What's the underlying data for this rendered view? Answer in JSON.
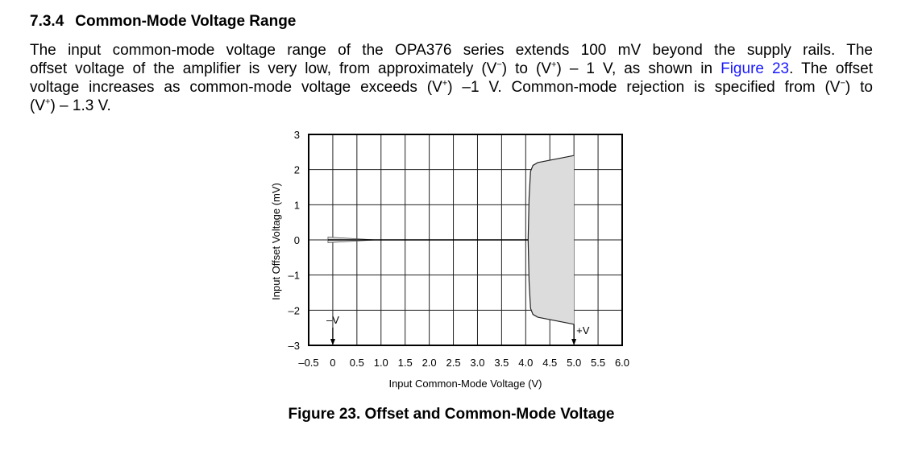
{
  "heading": {
    "number": "7.3.4",
    "title": "Common-Mode Voltage Range"
  },
  "paragraph": {
    "lines": [
      [
        {
          "t": "The input common-mode voltage range of the OPA376 series extends 100 mV beyond the supply rails. The"
        }
      ],
      [
        {
          "t": "offset voltage of the amplifier is very low, from approximately (V"
        },
        {
          "sup": "−"
        },
        {
          "t": ") to (V"
        },
        {
          "sup": "+"
        },
        {
          "t": ") – 1 V, as shown in "
        },
        {
          "link": "Figure 23"
        },
        {
          "t": ". The offset"
        }
      ],
      [
        {
          "t": "voltage increases as common-mode voltage exceeds (V"
        },
        {
          "sup": "+"
        },
        {
          "t": ") –1 V. Common-mode rejection is specified from (V"
        },
        {
          "sup": "−"
        },
        {
          "t": ") to"
        }
      ],
      [
        {
          "t": "(V"
        },
        {
          "sup": "+"
        },
        {
          "t": ") – 1.3 V."
        }
      ]
    ],
    "link_color": "#1a1aff"
  },
  "chart_data": {
    "type": "area",
    "xlabel": "Input Common-Mode Voltage (V)",
    "ylabel": "Input Offset Voltage (mV)",
    "xlim": [
      -0.5,
      6.0
    ],
    "ylim": [
      -3,
      3
    ],
    "xticks": [
      "–0.5",
      "0",
      "0.5",
      "1.0",
      "1.5",
      "2.0",
      "2.5",
      "3.0",
      "3.5",
      "4.0",
      "4.5",
      "5.0",
      "5.5",
      "6.0"
    ],
    "yticks": [
      "3",
      "2",
      "1",
      "0",
      "–1",
      "–2",
      "–3"
    ],
    "grid": true,
    "typical_line": {
      "x": [
        -0.1,
        4.05
      ],
      "y": [
        0,
        0
      ]
    },
    "low_end_spread": {
      "x": [
        -0.1,
        0.9
      ],
      "upper": [
        0.08,
        0
      ],
      "lower": [
        -0.08,
        0
      ]
    },
    "high_end_spread": {
      "x": [
        4.05,
        4.07,
        4.1,
        4.15,
        4.25,
        5.0
      ],
      "upper": [
        0,
        1.2,
        1.95,
        2.12,
        2.2,
        2.4
      ],
      "lower": [
        0,
        -1.2,
        -1.95,
        -2.12,
        -2.2,
        -2.4
      ]
    },
    "fill_color": "#dcdcdc",
    "markers": [
      {
        "label": "–V",
        "x": 0
      },
      {
        "label": "+V",
        "x": 5.0
      }
    ]
  },
  "caption": "Figure 23.  Offset and Common-Mode Voltage"
}
